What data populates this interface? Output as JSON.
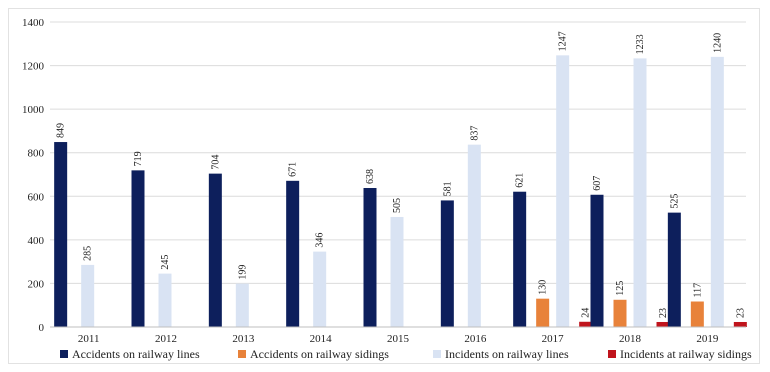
{
  "chart_data": {
    "type": "bar",
    "categories": [
      "2011",
      "2012",
      "2013",
      "2014",
      "2015",
      "2016",
      "2017",
      "2018",
      "2019"
    ],
    "ylim": [
      0,
      1400
    ],
    "yticks": [
      0,
      200,
      400,
      600,
      800,
      1000,
      1200,
      1400
    ],
    "grid": true,
    "legend_position": "bottom",
    "series": [
      {
        "name": "Accidents on railway lines",
        "color": "#0d1f5c",
        "values": [
          849,
          719,
          704,
          671,
          638,
          581,
          621,
          607,
          525
        ]
      },
      {
        "name": "Accidents on railway sidings",
        "color": "#e8823a",
        "values": [
          null,
          null,
          null,
          null,
          null,
          null,
          130,
          125,
          117
        ]
      },
      {
        "name": "Incidents on railway lines",
        "color": "#d9e3f3",
        "values": [
          285,
          245,
          199,
          346,
          505,
          837,
          1247,
          1233,
          1240
        ]
      },
      {
        "name": "Incidents at railway sidings",
        "color": "#c0141c",
        "values": [
          null,
          null,
          null,
          null,
          null,
          null,
          24,
          23,
          23
        ]
      }
    ]
  }
}
